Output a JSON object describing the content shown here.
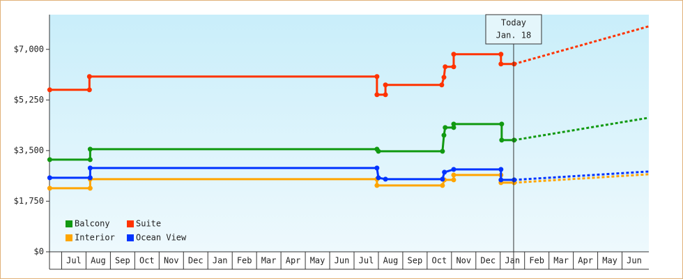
{
  "chart_data": {
    "type": "line",
    "ylim": [
      0,
      8200
    ],
    "yticks": [
      {
        "value": 0,
        "label": "$0"
      },
      {
        "value": 1750,
        "label": "$1,750"
      },
      {
        "value": 3500,
        "label": "$3,500"
      },
      {
        "value": 5250,
        "label": "$5,250"
      },
      {
        "value": 7000,
        "label": "$7,000"
      }
    ],
    "xlim": [
      -0.5,
      24.1
    ],
    "xticks": [
      {
        "value": 0.5,
        "label": "Jul"
      },
      {
        "value": 1.5,
        "label": "Aug"
      },
      {
        "value": 2.5,
        "label": "Sep"
      },
      {
        "value": 3.5,
        "label": "Oct"
      },
      {
        "value": 4.5,
        "label": "Nov"
      },
      {
        "value": 5.5,
        "label": "Dec"
      },
      {
        "value": 6.5,
        "label": "Jan"
      },
      {
        "value": 7.5,
        "label": "Feb"
      },
      {
        "value": 8.5,
        "label": "Mar"
      },
      {
        "value": 9.5,
        "label": "Apr"
      },
      {
        "value": 10.5,
        "label": "May"
      },
      {
        "value": 11.5,
        "label": "Jun"
      },
      {
        "value": 12.5,
        "label": "Jul"
      },
      {
        "value": 13.5,
        "label": "Aug"
      },
      {
        "value": 14.5,
        "label": "Sep"
      },
      {
        "value": 15.5,
        "label": "Oct"
      },
      {
        "value": 16.5,
        "label": "Nov"
      },
      {
        "value": 17.5,
        "label": "Dec"
      },
      {
        "value": 18.5,
        "label": "Jan"
      },
      {
        "value": 19.5,
        "label": "Feb"
      },
      {
        "value": 20.5,
        "label": "Mar"
      },
      {
        "value": 21.5,
        "label": "Apr"
      },
      {
        "value": 22.5,
        "label": "May"
      },
      {
        "value": 23.5,
        "label": "Jun"
      }
    ],
    "annotation": {
      "x": 18.55,
      "lines": [
        "Today",
        "Jan. 18"
      ]
    },
    "legend": "lower left",
    "series": [
      {
        "name": "Balcony",
        "color": "#119911",
        "x": [
          -0.49,
          1.17,
          1.17,
          12.94,
          13.0,
          15.63,
          15.69,
          15.74,
          16.09,
          16.09,
          18.06,
          18.06,
          18.57
        ],
        "values": [
          3186,
          3186,
          3549,
          3549,
          3476,
          3476,
          4031,
          4297,
          4297,
          4418,
          4418,
          3862,
          3862
        ],
        "projection": {
          "x": [
            18.57,
            24.1
          ],
          "values": [
            3862,
            4635
          ]
        }
      },
      {
        "name": "Suite",
        "color": "#ff3300",
        "x": [
          -0.49,
          1.14,
          1.14,
          12.94,
          12.94,
          13.29,
          13.29,
          15.6,
          15.69,
          15.74,
          16.09,
          16.09,
          18.03,
          18.03,
          18.57
        ],
        "values": [
          5600,
          5600,
          6059,
          6059,
          5431,
          5431,
          5770,
          5770,
          6034,
          6397,
          6397,
          6831,
          6831,
          6493,
          6493
        ],
        "projection": {
          "x": [
            18.57,
            24.1
          ],
          "values": [
            6493,
            7797
          ]
        }
      },
      {
        "name": "Interior",
        "color": "#ffa500",
        "x": [
          -0.49,
          1.17,
          1.17,
          12.94,
          12.94,
          15.63,
          15.71,
          16.09,
          16.09,
          18.03,
          18.03,
          18.57
        ],
        "values": [
          2197,
          2197,
          2511,
          2511,
          2293,
          2293,
          2486,
          2486,
          2655,
          2655,
          2390,
          2390
        ],
        "projection": {
          "x": [
            18.57,
            24.1
          ],
          "values": [
            2390,
            2680
          ]
        }
      },
      {
        "name": "Ocean View",
        "color": "#0033ff",
        "x": [
          -0.49,
          1.17,
          1.17,
          12.94,
          13.0,
          13.29,
          15.63,
          15.71,
          16.09,
          18.03,
          18.03,
          18.57
        ],
        "values": [
          2559,
          2559,
          2897,
          2897,
          2559,
          2511,
          2511,
          2752,
          2848,
          2848,
          2486,
          2486
        ],
        "projection": {
          "x": [
            18.57,
            24.1
          ],
          "values": [
            2486,
            2776
          ]
        }
      }
    ]
  }
}
